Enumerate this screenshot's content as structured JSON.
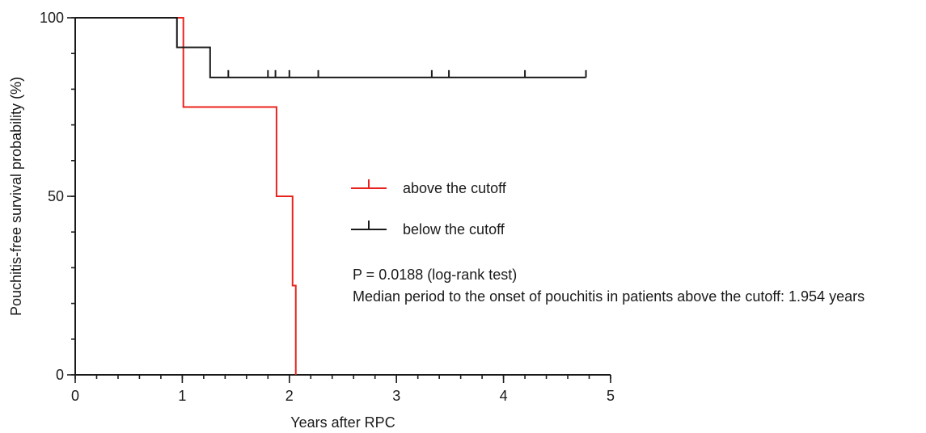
{
  "chart_data": {
    "type": "line",
    "subtype": "kaplan-meier",
    "title": "",
    "xlabel": "Years after RPC",
    "ylabel": "Pouchitis-free survival probability (%)",
    "xlim": [
      0,
      5
    ],
    "ylim": [
      0,
      100
    ],
    "x_ticks": [
      0,
      1,
      2,
      3,
      4,
      5
    ],
    "x_tick_labels": [
      "0",
      "1",
      "2",
      "3",
      "4",
      "5"
    ],
    "x_minor_step": 0.2,
    "y_ticks": [
      0,
      50,
      100
    ],
    "y_tick_labels": [
      "0",
      "50",
      "100"
    ],
    "y_minor_step": 10,
    "grid": false,
    "legend_position": "center-right",
    "series": [
      {
        "name": "above the cutoff",
        "color": "#e8231e",
        "steps": [
          [
            0,
            100
          ],
          [
            1.01,
            75
          ],
          [
            1.88,
            50
          ],
          [
            2.03,
            25
          ],
          [
            2.06,
            0
          ]
        ],
        "censored": []
      },
      {
        "name": "below the cutoff",
        "color": "#1a1a1a",
        "steps": [
          [
            0,
            100
          ],
          [
            0.95,
            91.7
          ],
          [
            1.26,
            83.3
          ]
        ],
        "end_x": 4.77,
        "censored": [
          1.43,
          1.8,
          1.87,
          2.0,
          2.27,
          3.33,
          3.49,
          4.2,
          4.77
        ]
      }
    ],
    "annotations": [
      "P = 0.0188 (log-rank test)",
      "Median period to the onset of pouchitis in patients above the cutoff: 1.954 years"
    ]
  }
}
